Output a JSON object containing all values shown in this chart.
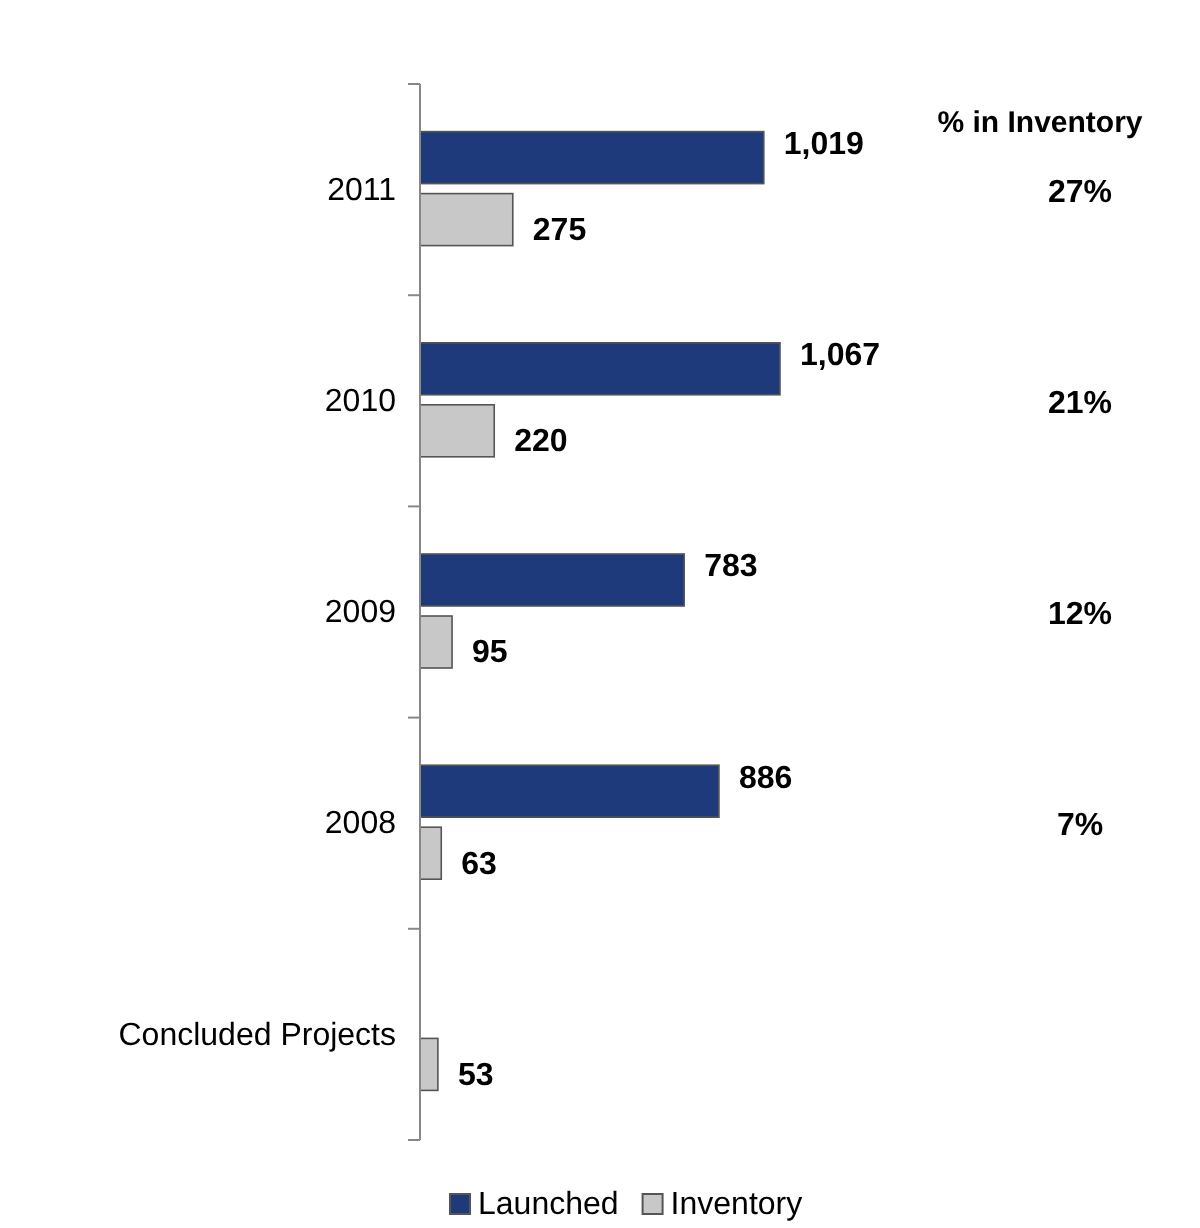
{
  "chart_data": {
    "type": "bar",
    "orientation": "horizontal",
    "categories": [
      "2011",
      "2010",
      "2009",
      "2008",
      "Concluded Projects"
    ],
    "series": [
      {
        "name": "Launched",
        "color": "#1f3a7a",
        "values": [
          1019,
          1067,
          783,
          886,
          null
        ],
        "value_labels": [
          "1,019",
          "1,067",
          "783",
          "886",
          null
        ]
      },
      {
        "name": "Inventory",
        "color": "#c8c8c8",
        "values": [
          275,
          220,
          95,
          63,
          53
        ],
        "value_labels": [
          "275",
          "220",
          "95",
          "63",
          "53"
        ]
      }
    ],
    "legend": "bottom",
    "annotations": [
      "% in Inventory",
      "27%",
      "21%",
      "12%",
      "7%"
    ]
  }
}
